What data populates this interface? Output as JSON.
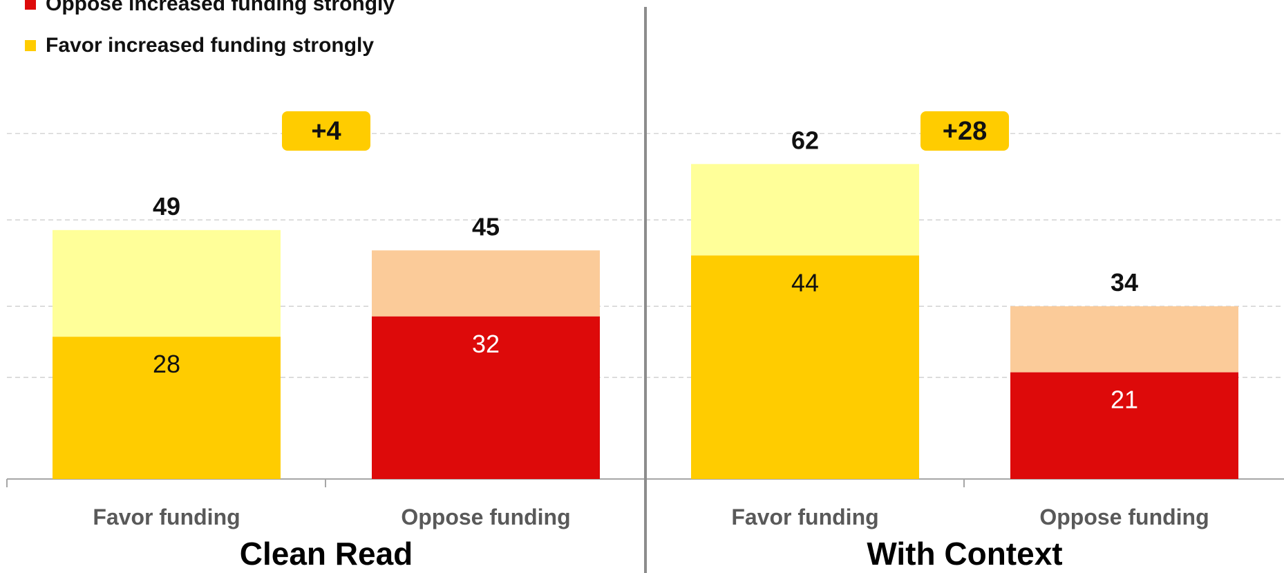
{
  "legend": [
    {
      "label": "Oppose increased funding strongly",
      "color": "#DD0A0A"
    },
    {
      "label": "Favor increased funding strongly",
      "color": "#FFCC00"
    }
  ],
  "chart_data": {
    "type": "bar",
    "stacked": true,
    "grid": true,
    "ylim": [
      0,
      100
    ],
    "groups": [
      {
        "title": "Clean Read",
        "difference_label": "+4",
        "bars": [
          {
            "category": "Favor funding",
            "strong": 28,
            "total": 49,
            "strong_color": "#FFCC00",
            "rest_color": "#FFFF99"
          },
          {
            "category": "Oppose funding",
            "strong": 32,
            "total": 45,
            "strong_color": "#DD0A0A",
            "rest_color": "#FBCB99"
          }
        ]
      },
      {
        "title": "With Context",
        "difference_label": "+28",
        "bars": [
          {
            "category": "Favor funding",
            "strong": 44,
            "total": 62,
            "strong_color": "#FFCC00",
            "rest_color": "#FFFF99"
          },
          {
            "category": "Oppose funding",
            "strong": 21,
            "total": 34,
            "strong_color": "#DD0A0A",
            "rest_color": "#FBCB99"
          }
        ]
      }
    ]
  }
}
